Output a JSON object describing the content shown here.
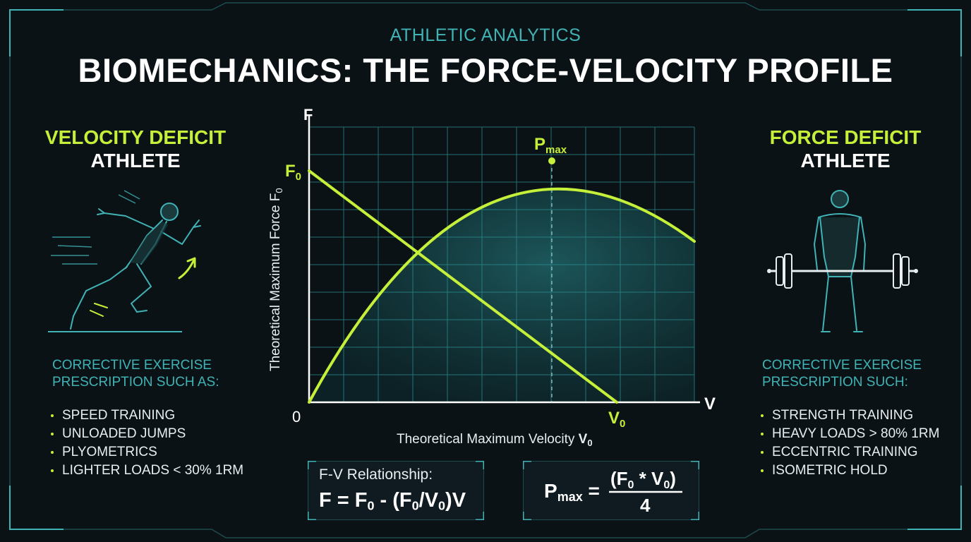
{
  "header": {
    "kicker": "ATHLETIC ANALYTICS",
    "title": "BIOMECHANICS: THE FORCE-VELOCITY PROFILE"
  },
  "left_panel": {
    "title_highlight": "VELOCITY DEFICIT",
    "title_rest": "ATHLETE",
    "figure_icon": "sprinter-icon",
    "prescription_line1": "CORRECTIVE EXERCISE",
    "prescription_line2": "PRESCRIPTION SUCH AS:",
    "items": [
      "SPEED TRAINING",
      "UNLOADED JUMPS",
      "PLYOMETRICS",
      "LIGHTER LOADS < 30% 1RM"
    ]
  },
  "right_panel": {
    "title_highlight": "FORCE DEFICIT",
    "title_rest": "ATHLETE",
    "figure_icon": "weightlifter-icon",
    "prescription_line1": "CORRECTIVE EXERCISE",
    "prescription_line2": "PRESCRIPTION SUCH:",
    "items": [
      "STRENGTH TRAINING",
      "HEAVY LOADS > 80% 1RM",
      "ECCENTRIC TRAINING",
      "ISOMETRIC HOLD"
    ]
  },
  "chart": {
    "y_axis_letter": "F",
    "x_axis_letter": "V",
    "origin_label": "0",
    "f0_label": "F",
    "f0_sub": "0",
    "v0_label": "V",
    "v0_sub": "0",
    "pmax_label": "P",
    "pmax_sub": "max",
    "y_title": "Theoretical Maximum Force F",
    "y_title_sub": "0",
    "x_title": "Theoretical Maximum Velocity ",
    "x_title_v": "V",
    "x_title_sub": "0"
  },
  "formulas": {
    "relationship_label": "F-V Relationship:",
    "pmax_numerator": "(F",
    "pmax_numerator_mid": " * V",
    "pmax_numerator_end": ")",
    "pmax_denominator": "4"
  },
  "colors": {
    "accent": "#c5f03a",
    "teal": "#3fb3b5",
    "background": "#0b1216",
    "grid": "#2a8f93"
  }
}
